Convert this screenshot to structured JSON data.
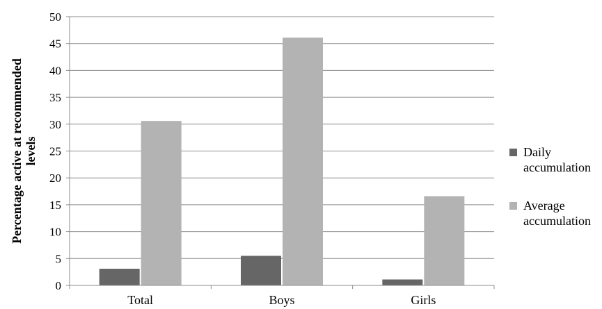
{
  "chart_data": {
    "type": "bar",
    "title": "",
    "xlabel": "",
    "ylabel": "Percentage active at recommended levels",
    "ylabel_lines": [
      "Percentage active at recommended",
      "levels"
    ],
    "ylim": [
      0,
      50
    ],
    "yticks": [
      0,
      5,
      10,
      15,
      20,
      25,
      30,
      35,
      40,
      45,
      50
    ],
    "categories": [
      "Total",
      "Boys",
      "Girls"
    ],
    "series": [
      {
        "name": "Daily accumulation",
        "legend_lines": [
          "Daily",
          "accumulation"
        ],
        "color": "#666666",
        "values": [
          3.1,
          5.5,
          1.1
        ]
      },
      {
        "name": "Average accumulation",
        "legend_lines": [
          "Average",
          "accumulation"
        ],
        "color": "#b3b3b3",
        "values": [
          30.6,
          46.1,
          16.6
        ]
      }
    ],
    "grid": true,
    "legend_position": "right"
  }
}
